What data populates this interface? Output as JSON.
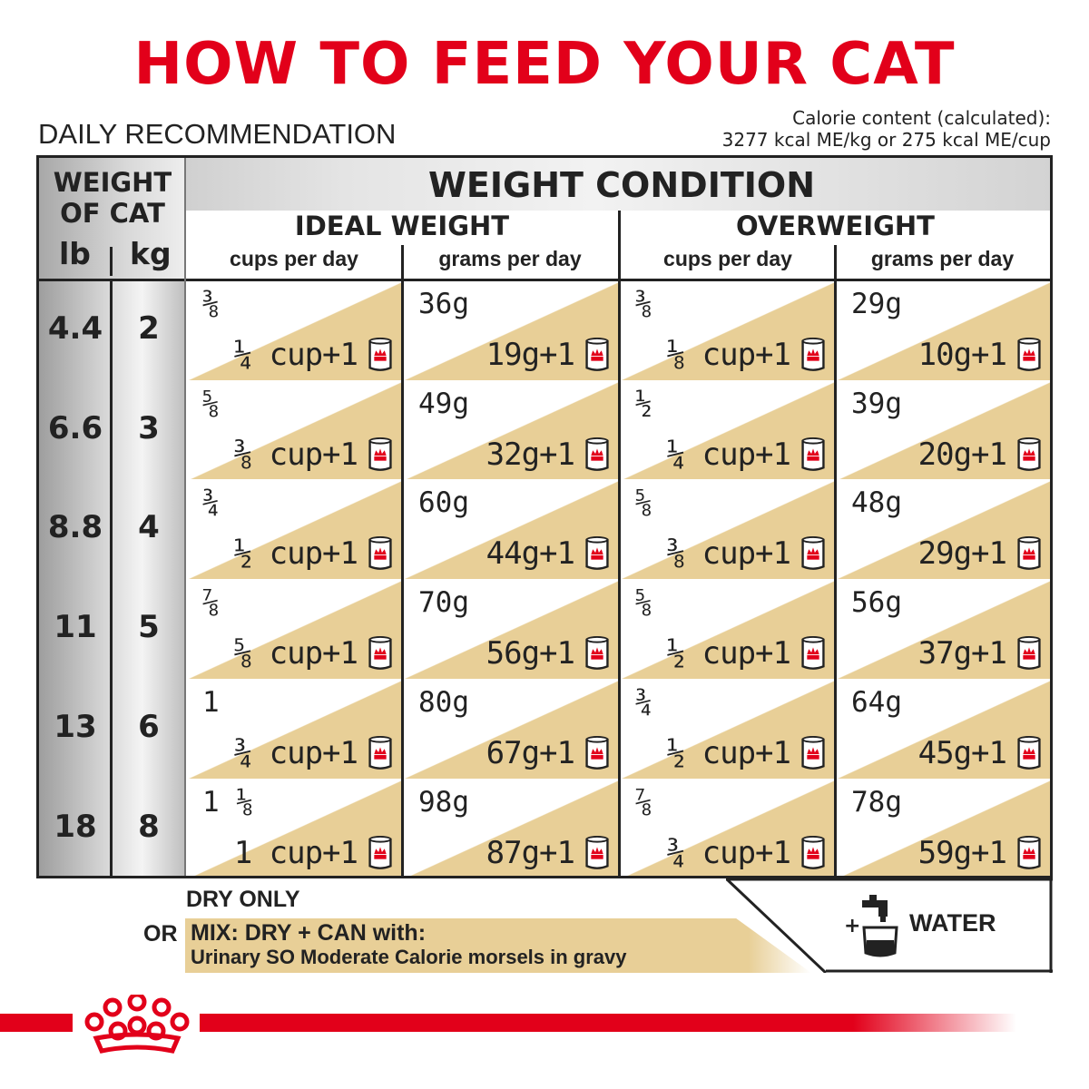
{
  "title": "HOW TO FEED YOUR CAT",
  "daily_recommendation": "DAILY RECOMMENDATION",
  "calorie": {
    "line1": "Calorie content (calculated):",
    "line2": "3277 kcal ME/kg or 275 kcal ME/cup"
  },
  "header": {
    "weight_of_cat_1": "WEIGHT",
    "weight_of_cat_2": "OF CAT",
    "lb": "lb",
    "kg": "kg",
    "weight_condition": "WEIGHT CONDITION",
    "ideal_weight": "IDEAL WEIGHT",
    "overweight": "OVERWEIGHT",
    "cups_per_day": "cups per day",
    "grams_per_day": "grams per day"
  },
  "rows": [
    {
      "lb": "4.4",
      "kg": "2",
      "ideal_cups_dry": "⅜",
      "ideal_cups_mix": "¼ cup+1",
      "ideal_grams_dry": "36g",
      "ideal_grams_mix": "19g+1",
      "over_cups_dry": "⅜",
      "over_cups_mix": "⅛ cup+1",
      "over_grams_dry": "29g",
      "over_grams_mix": "10g+1"
    },
    {
      "lb": "6.6",
      "kg": "3",
      "ideal_cups_dry": "⅝",
      "ideal_cups_mix": "⅜ cup+1",
      "ideal_grams_dry": "49g",
      "ideal_grams_mix": "32g+1",
      "over_cups_dry": "½",
      "over_cups_mix": "¼ cup+1",
      "over_grams_dry": "39g",
      "over_grams_mix": "20g+1"
    },
    {
      "lb": "8.8",
      "kg": "4",
      "ideal_cups_dry": "¾",
      "ideal_cups_mix": "½ cup+1",
      "ideal_grams_dry": "60g",
      "ideal_grams_mix": "44g+1",
      "over_cups_dry": "⅝",
      "over_cups_mix": "⅜ cup+1",
      "over_grams_dry": "48g",
      "over_grams_mix": "29g+1"
    },
    {
      "lb": "11",
      "kg": "5",
      "ideal_cups_dry": "⅞",
      "ideal_cups_mix": "⅝ cup+1",
      "ideal_grams_dry": "70g",
      "ideal_grams_mix": "56g+1",
      "over_cups_dry": "⅝",
      "over_cups_mix": "½ cup+1",
      "over_grams_dry": "56g",
      "over_grams_mix": "37g+1"
    },
    {
      "lb": "13",
      "kg": "6",
      "ideal_cups_dry": "1",
      "ideal_cups_mix": "¾ cup+1",
      "ideal_grams_dry": "80g",
      "ideal_grams_mix": "67g+1",
      "over_cups_dry": "¾",
      "over_cups_mix": "½ cup+1",
      "over_grams_dry": "64g",
      "over_grams_mix": "45g+1"
    },
    {
      "lb": "18",
      "kg": "8",
      "ideal_cups_dry": "1 ⅛",
      "ideal_cups_mix": "1 cup+1",
      "ideal_grams_dry": "98g",
      "ideal_grams_mix": "87g+1",
      "over_cups_dry": "⅞",
      "over_cups_mix": "¾ cup+1",
      "over_grams_dry": "78g",
      "over_grams_mix": "59g+1"
    }
  ],
  "footer": {
    "dry_only": "DRY ONLY",
    "or": "OR",
    "mix_line1": "MIX: DRY + CAN with:",
    "mix_line2": "Urinary SO Moderate Calorie morsels in gravy",
    "plus": "+",
    "water": "WATER"
  },
  "icons": {
    "can": "can-icon",
    "tap": "water-tap-icon",
    "logo": "royal-canin-crown-icon"
  },
  "colors": {
    "brand_red": "#e2001a",
    "tan": "#e8cf97"
  }
}
